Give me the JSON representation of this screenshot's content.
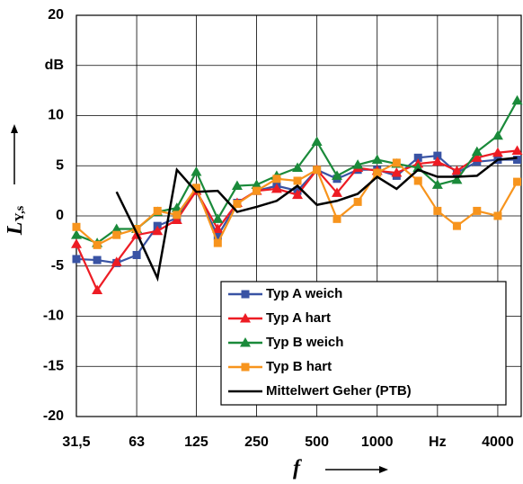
{
  "chart_data": {
    "type": "line",
    "x_label": "f",
    "y_label": "L",
    "y_label_sub": "Y,s",
    "x": [
      31.5,
      40,
      50,
      63,
      80,
      100,
      125,
      160,
      200,
      250,
      315,
      400,
      500,
      630,
      800,
      1000,
      1250,
      1600,
      2000,
      2500,
      3150,
      4000,
      5000
    ],
    "xlim": [
      31.5,
      5236
    ],
    "log_x": true,
    "xticks": [
      {
        "value": 31.5,
        "label": "31,5"
      },
      63,
      125,
      250,
      500,
      1000,
      {
        "value": 2000,
        "label": "Hz"
      },
      4000
    ],
    "ylim": [
      -20,
      20
    ],
    "yticks": [
      -20,
      -15,
      -10,
      -5,
      0,
      5,
      10,
      {
        "value": 15,
        "label": "dB"
      },
      20
    ],
    "grid": true,
    "legend": "lower right",
    "series": [
      {
        "name": "Typ A weich",
        "color": "#3953a4",
        "marker": "square",
        "values": [
          -4.3,
          -4.4,
          -4.7,
          -3.9,
          -1.0,
          -0.2,
          2.5,
          -2.0,
          1.3,
          2.5,
          3.0,
          2.5,
          4.6,
          3.7,
          4.6,
          4.6,
          4.0,
          5.8,
          6.0,
          4.3,
          5.4,
          5.6,
          5.6
        ]
      },
      {
        "name": "Typ A hart",
        "color": "#ed1c24",
        "marker": "triangle",
        "values": [
          -2.8,
          -7.4,
          -4.6,
          -1.9,
          -1.5,
          -0.4,
          2.5,
          -1.3,
          1.3,
          2.5,
          2.7,
          2.1,
          4.6,
          2.3,
          4.8,
          4.5,
          4.3,
          5.2,
          5.4,
          4.5,
          5.8,
          6.3,
          6.5
        ]
      },
      {
        "name": "Typ B weich",
        "color": "#1a8a3a",
        "marker": "triangle",
        "values": [
          -1.9,
          -2.7,
          -1.3,
          -1.3,
          0.4,
          0.8,
          4.4,
          -0.3,
          3.0,
          3.1,
          4.0,
          4.8,
          7.4,
          4.0,
          5.1,
          5.6,
          5.2,
          4.8,
          3.1,
          3.6,
          6.4,
          8.0,
          11.5
        ]
      },
      {
        "name": "Typ B hart",
        "color": "#f7941d",
        "marker": "square",
        "values": [
          -1.1,
          -2.9,
          -1.9,
          -1.3,
          0.5,
          0.1,
          2.8,
          -2.7,
          1.2,
          2.5,
          3.7,
          3.5,
          4.6,
          -0.3,
          1.4,
          4.3,
          5.3,
          3.5,
          0.5,
          -1.0,
          0.5,
          0.0,
          3.4
        ]
      },
      {
        "name": "Mittelwert Geher (PTB)",
        "color": "#000000",
        "marker": "none",
        "values": [
          null,
          null,
          2.4,
          -1.7,
          -6.2,
          4.6,
          2.4,
          2.5,
          0.4,
          0.9,
          1.5,
          3.0,
          1.1,
          1.5,
          2.2,
          3.9,
          2.7,
          4.6,
          3.9,
          3.9,
          4.0,
          5.6,
          5.8
        ]
      }
    ]
  }
}
